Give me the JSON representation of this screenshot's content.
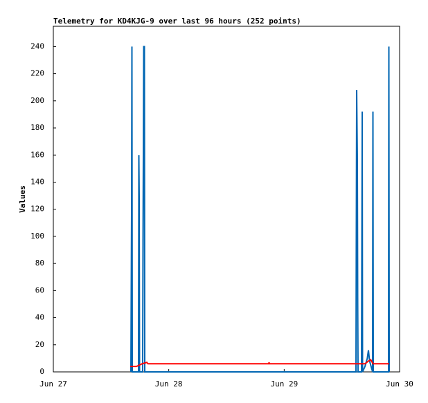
{
  "chart_data": {
    "type": "line",
    "title": "Telemetry for KD4KJG-9 over last 96 hours (252 points)",
    "y_label": "Values",
    "xlim": [
      0,
      3
    ],
    "xticks": [
      {
        "value": 0,
        "label": "Jun 27"
      },
      {
        "value": 1,
        "label": "Jun 28"
      },
      {
        "value": 2,
        "label": "Jun 29"
      },
      {
        "value": 3,
        "label": "Jun 30"
      }
    ],
    "ylim": [
      0,
      255
    ],
    "yticks": [
      0,
      20,
      40,
      60,
      80,
      100,
      120,
      140,
      160,
      180,
      200,
      220,
      240
    ],
    "grid": false,
    "series": [
      {
        "color": "#0066b3",
        "x": [
          0.672,
          0.678,
          0.681,
          0.684,
          0.738,
          0.741,
          0.744,
          0.747,
          0.774,
          0.777,
          0.78,
          0.783,
          0.789,
          0.792,
          2.622,
          2.628,
          2.634,
          2.637,
          2.64,
          2.67,
          2.673,
          2.676,
          2.679,
          2.7,
          2.72,
          2.73,
          2.74,
          2.766,
          2.769,
          2.772,
          2.904,
          2.907,
          2.91
        ],
        "values": [
          0,
          120,
          240,
          0,
          0,
          160,
          128,
          0,
          0,
          96,
          160,
          240,
          240,
          0,
          0,
          208,
          156,
          52,
          0,
          0,
          96,
          192,
          0,
          4,
          10,
          16,
          8,
          0,
          192,
          0,
          0,
          240,
          0
        ]
      },
      {
        "color": "#ff0000",
        "x": [
          0.666,
          0.72,
          0.77,
          0.81,
          0.82,
          1.866,
          1.869,
          1.872,
          2.7,
          2.73,
          2.75,
          2.77,
          2.91
        ],
        "values": [
          4,
          4,
          6,
          7,
          6,
          6,
          7,
          6,
          6,
          8,
          9,
          6,
          6
        ]
      }
    ]
  }
}
